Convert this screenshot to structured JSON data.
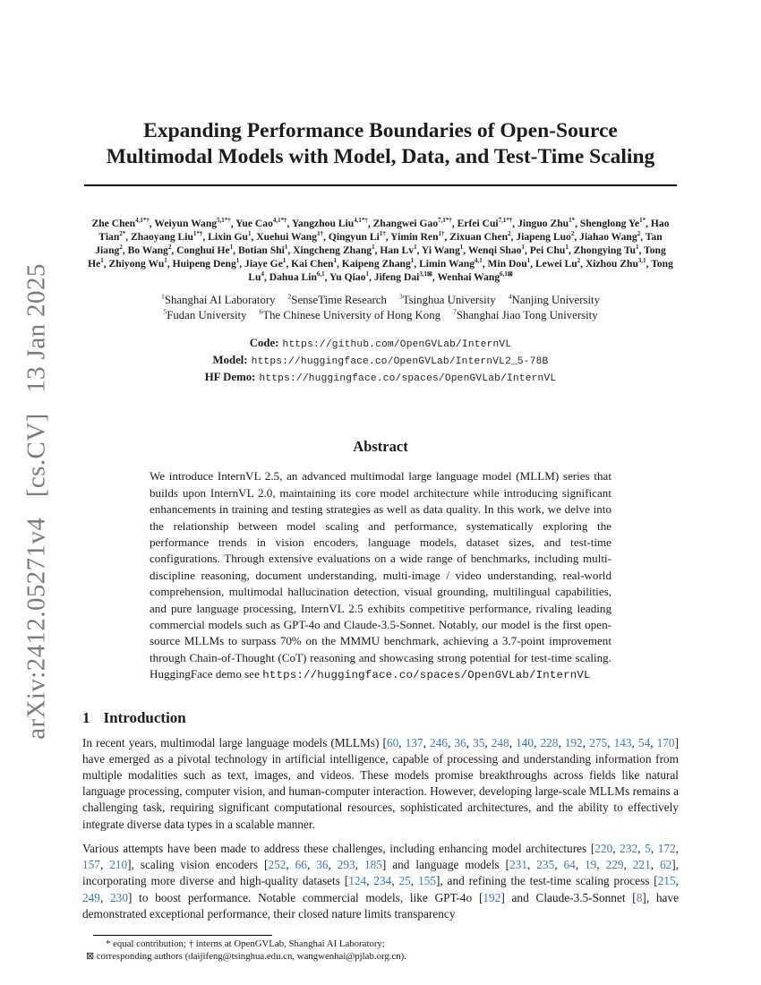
{
  "colors": {
    "citation_blue": "#3b7abf",
    "watermark_gray": "#7b7b7b"
  },
  "watermark": {
    "text": "arXiv:2412.05271v4  [cs.CV]  13 Jan 2025"
  },
  "title": {
    "line1": "Expanding Performance Boundaries of Open-Source",
    "line2": "Multimodal Models with Model, Data, and Test-Time Scaling"
  },
  "authors": [
    {
      "name": "Zhe Chen",
      "sup": "4,1*†"
    },
    {
      "name": "Weiyun Wang",
      "sup": "5,1*†"
    },
    {
      "name": "Yue Cao",
      "sup": "4,1*†"
    },
    {
      "name": "Yangzhou Liu",
      "sup": "4,1*†"
    },
    {
      "name": "Zhangwei Gao",
      "sup": "7,1*†"
    },
    {
      "name": "Erfei Cui",
      "sup": "7,1*†"
    },
    {
      "name": "Jinguo Zhu",
      "sup": "1*"
    },
    {
      "name": "Shenglong Ye",
      "sup": "1*"
    },
    {
      "name": "Hao Tian",
      "sup": "2*"
    },
    {
      "name": "Zhaoyang Liu",
      "sup": "1*†"
    },
    {
      "name": "Lixin Gu",
      "sup": "1"
    },
    {
      "name": "Xuehui Wang",
      "sup": "1†"
    },
    {
      "name": "Qingyun Li",
      "sup": "1†"
    },
    {
      "name": "Yimin Ren",
      "sup": "1†"
    },
    {
      "name": "Zixuan Chen",
      "sup": "2"
    },
    {
      "name": "Jiapeng Luo",
      "sup": "2"
    },
    {
      "name": "Jiahao Wang",
      "sup": "2"
    },
    {
      "name": "Tan Jiang",
      "sup": "2"
    },
    {
      "name": "Bo Wang",
      "sup": "2"
    },
    {
      "name": "Conghui He",
      "sup": "1"
    },
    {
      "name": "Botian Shi",
      "sup": "1"
    },
    {
      "name": "Xingcheng Zhang",
      "sup": "1"
    },
    {
      "name": "Han Lv",
      "sup": "1"
    },
    {
      "name": "Yi Wang",
      "sup": "1"
    },
    {
      "name": "Wenqi Shao",
      "sup": "1"
    },
    {
      "name": "Pei Chu",
      "sup": "1"
    },
    {
      "name": "Zhongying Tu",
      "sup": "1"
    },
    {
      "name": "Tong He",
      "sup": "1"
    },
    {
      "name": "Zhiyong Wu",
      "sup": "1"
    },
    {
      "name": "Huipeng Deng",
      "sup": "1"
    },
    {
      "name": "Jiaye Ge",
      "sup": "1"
    },
    {
      "name": "Kai Chen",
      "sup": "1"
    },
    {
      "name": "Kaipeng Zhang",
      "sup": "1"
    },
    {
      "name": "Limin Wang",
      "sup": "4,1"
    },
    {
      "name": "Min Dou",
      "sup": "1"
    },
    {
      "name": "Lewei Lu",
      "sup": "2"
    },
    {
      "name": "Xizhou Zhu",
      "sup": "3,1"
    },
    {
      "name": "Tong Lu",
      "sup": "4"
    },
    {
      "name": "Dahua Lin",
      "sup": "6,1"
    },
    {
      "name": "Yu Qiao",
      "sup": "1"
    },
    {
      "name": "Jifeng Dai",
      "sup": "3,1⊠"
    },
    {
      "name": "Wenhai Wang",
      "sup": "6,1⊠"
    }
  ],
  "affiliations": {
    "line1": [
      {
        "sup": "1",
        "name": "Shanghai AI Laboratory"
      },
      {
        "sup": "2",
        "name": "SenseTime Research"
      },
      {
        "sup": "3",
        "name": "Tsinghua University"
      },
      {
        "sup": "4",
        "name": "Nanjing University"
      }
    ],
    "line2": [
      {
        "sup": "5",
        "name": "Fudan University"
      },
      {
        "sup": "6",
        "name": "The Chinese University of Hong Kong"
      },
      {
        "sup": "7",
        "name": "Shanghai Jiao Tong University"
      }
    ]
  },
  "links": [
    {
      "label": "Code:",
      "url": "https://github.com/OpenGVLab/InternVL"
    },
    {
      "label": "Model:",
      "url": "https://huggingface.co/OpenGVLab/InternVL2_5-78B"
    },
    {
      "label": "HF Demo:",
      "url": "https://huggingface.co/spaces/OpenGVLab/InternVL"
    }
  ],
  "abstract": {
    "heading": "Abstract",
    "segments": [
      {
        "t": "We introduce InternVL 2.5, an advanced multimodal large language model (MLLM) series that builds upon InternVL 2.0, maintaining its core model architecture while introducing significant enhancements in training and testing strategies as well as data quality. In this work, we delve into the relationship between model scaling and performance, systematically exploring the performance trends in vision encoders, language models, dataset sizes, and test-time configurations. Through extensive evaluations on a wide range of benchmarks, including multi-discipline reasoning, document understanding, multi-image / video understanding, real-world comprehension, multimodal hallucination detection, visual grounding, multilingual capabilities, and pure language processing, InternVL 2.5 exhibits competitive performance, rivaling leading commercial models such as GPT-4o and Claude-3.5-Sonnet. Notably, our model is the first open-source MLLMs to surpass 70% on the MMMU benchmark, achieving a 3.7-point improvement through Chain-of-Thought (CoT) reasoning and showcasing strong potential for test-time scaling. HuggingFace demo see "
      },
      {
        "m": "https://huggingface.co/spaces/OpenGVLab/InternVL"
      }
    ]
  },
  "introduction": {
    "number": "1",
    "title": "Introduction",
    "paragraphs": [
      [
        {
          "t": "In recent years, multimodal large language models (MLLMs) "
        },
        {
          "cites": [
            "60",
            "137",
            "246",
            "36",
            "35",
            "248",
            "140",
            "228",
            "192",
            "275",
            "143",
            "54",
            "170"
          ]
        },
        {
          "t": " have emerged as a pivotal technology in artificial intelligence, capable of processing and understanding information from multiple modalities such as text, images, and videos. These models promise breakthroughs across fields like natural language processing, computer vision, and human-computer interaction. However, developing large-scale MLLMs remains a challenging task, requiring significant computational resources, sophisticated architectures, and the ability to effectively integrate diverse data types in a scalable manner."
        }
      ],
      [
        {
          "t": "Various attempts have been made to address these challenges, including enhancing model architectures "
        },
        {
          "cites": [
            "220",
            "232",
            "5",
            "172",
            "157",
            "210"
          ]
        },
        {
          "t": ", scaling vision encoders "
        },
        {
          "cites": [
            "252",
            "66",
            "36",
            "293",
            "185"
          ]
        },
        {
          "t": " and language models "
        },
        {
          "cites": [
            "231",
            "235",
            "64",
            "19",
            "229",
            "221",
            "62"
          ]
        },
        {
          "t": ", incorporating more diverse and high-quality datasets "
        },
        {
          "cites": [
            "124",
            "234",
            "25",
            "155"
          ]
        },
        {
          "t": ", and refining the test-time scaling process "
        },
        {
          "cites": [
            "215",
            "249",
            "230"
          ]
        },
        {
          "t": " to boost performance. Notable commercial models, like GPT-4o "
        },
        {
          "cites": [
            "192"
          ]
        },
        {
          "t": " and Claude-3.5-Sonnet "
        },
        {
          "cites": [
            "8"
          ]
        },
        {
          "t": ", have demonstrated exceptional performance, their closed nature limits transparency"
        }
      ]
    ]
  },
  "footnotes": {
    "line1": "* equal contribution; † interns at OpenGVLab, Shanghai AI Laboratory;",
    "line2": "⊠ corresponding authors (daijifeng@tsinghua.edu.cn, wangwenhai@pjlab.org.cn)."
  }
}
